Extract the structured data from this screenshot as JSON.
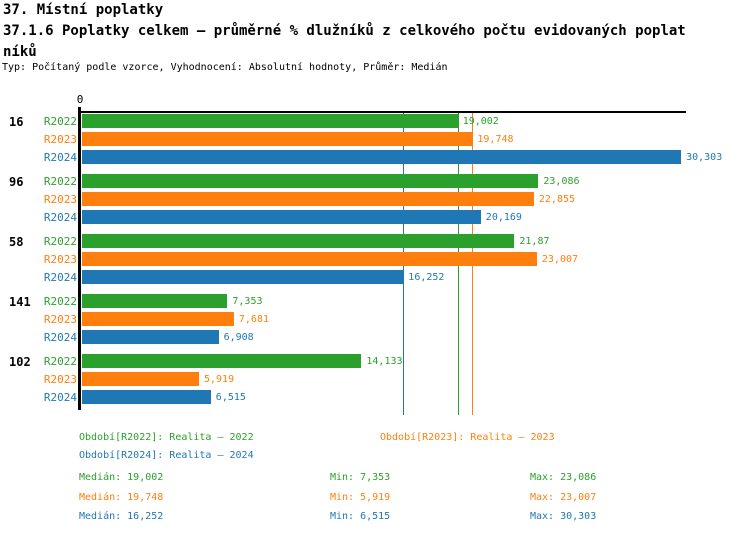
{
  "header": {
    "title": "37. Místní poplatky",
    "subtitle_line1": "37.1.6 Poplatky celkem – průměrné % dlužníků z celkového počtu evidovaných poplat",
    "subtitle_line2": "níků",
    "meta": "Typ: Počítaný podle vzorce, Vyhodnocení: Absolutní hodnoty, Průměr: Medián"
  },
  "chart_data": {
    "type": "bar",
    "orientation": "horizontal",
    "title": "37.1.6 Poplatky celkem – průměrné % dlužníků z celkového počtu evidovaných poplatníků",
    "x_origin_label": "0",
    "xlim": [
      0,
      30.55
    ],
    "grid": false,
    "categories": [
      "16",
      "96",
      "58",
      "141",
      "102"
    ],
    "series": [
      {
        "name": "R2022",
        "color": "#2ca02c",
        "values": [
          19.002,
          23.086,
          21.87,
          7.353,
          14.133
        ],
        "labels": [
          "19,002",
          "23,086",
          "21,87",
          "7,353",
          "14,133"
        ],
        "median": 19.002,
        "min": 7.353,
        "max": 23.086
      },
      {
        "name": "R2023",
        "color": "#ff7f0e",
        "values": [
          19.748,
          22.855,
          23.007,
          7.681,
          5.919
        ],
        "labels": [
          "19,748",
          "22,855",
          "23,007",
          "7,681",
          "5,919"
        ],
        "median": 19.748,
        "min": 5.919,
        "max": 23.007
      },
      {
        "name": "R2024",
        "color": "#1f77b4",
        "values": [
          30.303,
          20.169,
          16.252,
          6.908,
          6.515
        ],
        "labels": [
          "30,303",
          "20,169",
          "16,252",
          "6,908",
          "6,515"
        ],
        "median": 16.252,
        "min": 6.515,
        "max": 30.303
      }
    ],
    "median_lines": [
      {
        "series": "R2022",
        "value": 19.002,
        "color": "#2ca02c"
      },
      {
        "series": "R2023",
        "value": 19.748,
        "color": "#ff7f0e"
      },
      {
        "series": "R2024",
        "value": 16.252,
        "color": "#1f77b4"
      }
    ]
  },
  "legend": {
    "items": [
      {
        "series": "R2022",
        "label": "Období[R2022]: Realita – 2022"
      },
      {
        "series": "R2023",
        "label": "Období[R2023]: Realita – 2023"
      },
      {
        "series": "R2024",
        "label": "Období[R2024]: Realita – 2024"
      }
    ]
  },
  "stats": {
    "rows": [
      {
        "series": "R2022",
        "median_label": "Medián: 19,002",
        "min_label": "Min: 7,353",
        "max_label": "Max: 23,086"
      },
      {
        "series": "R2023",
        "median_label": "Medián: 19,748",
        "min_label": "Min: 5,919",
        "max_label": "Max: 23,007"
      },
      {
        "series": "R2024",
        "median_label": "Medián: 16,252",
        "min_label": "Min: 6,515",
        "max_label": "Max: 30,303"
      }
    ]
  },
  "colors": {
    "r2022_green": "#2ca02c",
    "r2023_orange": "#ff7f0e",
    "r2024_blue": "#1f77b4",
    "axis_black": "#000000",
    "background": "#ffffff"
  }
}
